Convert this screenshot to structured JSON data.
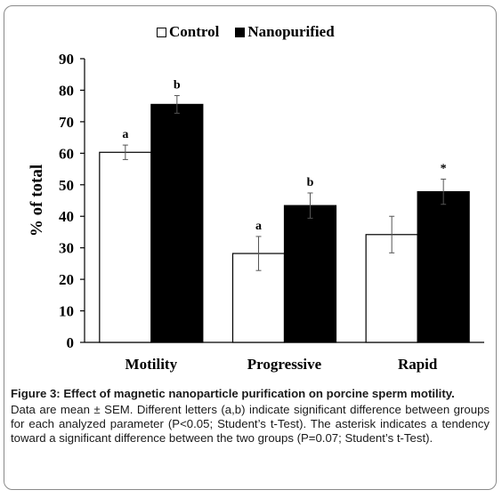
{
  "chart_data": {
    "type": "bar",
    "categories": [
      "Motility",
      "Progressive",
      "Rapid"
    ],
    "series": [
      {
        "name": "Control",
        "values": [
          60.3,
          28.2,
          34.2
        ],
        "sem": [
          2.3,
          5.4,
          5.8
        ],
        "labels": [
          "a",
          "a",
          ""
        ],
        "color": "#ffffff"
      },
      {
        "name": "Nanopurified",
        "values": [
          75.5,
          43.4,
          47.8
        ],
        "sem": [
          2.8,
          4.0,
          4.0
        ],
        "labels": [
          "b",
          "b",
          "*"
        ],
        "color": "#000000"
      }
    ],
    "ylabel": "% of total",
    "ylim": [
      0,
      90
    ],
    "yticks": [
      0,
      10,
      20,
      30,
      40,
      50,
      60,
      70,
      80,
      90
    ],
    "grid": false,
    "legend_position": "top-center"
  },
  "caption": {
    "title": "Figure 3: Effect of magnetic nanoparticle purification on porcine sperm motility.",
    "body": "Data are mean ± SEM. Different letters (a,b) indicate significant difference between groups for each analyzed parameter (P<0.05; Student’s t-Test). The asterisk indicates a tendency toward a significant difference between the two groups (P=0.07; Student’s t-Test)."
  }
}
